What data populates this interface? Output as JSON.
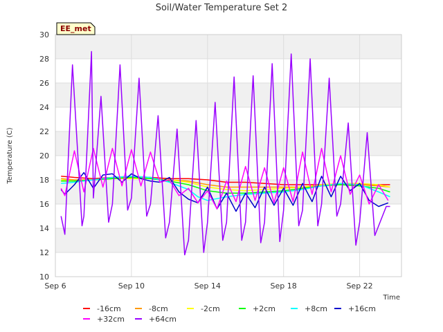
{
  "chart_data": {
    "type": "line",
    "title": "Soil/Water Temperature Set 2",
    "xlabel": "Time",
    "ylabel": "Temperature (C)",
    "badge": "EE_met",
    "ylim": [
      10,
      30
    ],
    "yticks": [
      10,
      12,
      14,
      16,
      18,
      20,
      22,
      24,
      26,
      28,
      30
    ],
    "xlim": [
      0,
      18.2
    ],
    "xticks": [
      {
        "value": 0,
        "label": "Sep 6"
      },
      {
        "value": 4,
        "label": "Sep 10"
      },
      {
        "value": 8,
        "label": "Sep 14"
      },
      {
        "value": 12,
        "label": "Sep 18"
      },
      {
        "value": 16,
        "label": "Sep 22"
      }
    ],
    "grid": true,
    "legend_position": "bottom",
    "series": [
      {
        "name": "-16cm",
        "color": "#ff0000",
        "x": [
          0.3,
          1,
          2,
          3,
          4,
          5,
          6,
          7,
          8,
          9,
          10,
          11,
          12,
          13,
          14,
          15,
          16,
          17,
          17.6
        ],
        "values": [
          18.3,
          18.2,
          18.1,
          18.2,
          18.3,
          18.2,
          18.1,
          18.1,
          18.0,
          17.8,
          17.8,
          17.7,
          17.6,
          17.6,
          17.6,
          17.6,
          17.6,
          17.6,
          17.6
        ]
      },
      {
        "name": "-8cm",
        "color": "#ff9900",
        "x": [
          0.3,
          1,
          2,
          3,
          4,
          5,
          6,
          7,
          8,
          9,
          10,
          11,
          12,
          13,
          14,
          15,
          16,
          17,
          17.6
        ],
        "values": [
          18.1,
          18.0,
          18.0,
          18.1,
          18.1,
          18.1,
          18.0,
          17.9,
          17.6,
          17.4,
          17.4,
          17.4,
          17.4,
          17.4,
          17.5,
          17.6,
          17.6,
          17.5,
          17.4
        ]
      },
      {
        "name": "-2cm",
        "color": "#ffff00",
        "x": [
          0.3,
          1,
          2,
          3,
          4,
          5,
          6,
          7,
          8,
          9,
          10,
          11,
          12,
          13,
          14,
          15,
          16,
          17,
          17.6
        ],
        "values": [
          18.0,
          17.9,
          18.0,
          18.1,
          18.1,
          18.1,
          18.0,
          17.8,
          17.4,
          17.2,
          17.1,
          17.2,
          17.3,
          17.4,
          17.6,
          17.7,
          17.7,
          17.6,
          17.4
        ]
      },
      {
        "name": "+2cm",
        "color": "#00ff00",
        "x": [
          0.3,
          1,
          2,
          3,
          4,
          5,
          6,
          7,
          8,
          9,
          10,
          11,
          12,
          13,
          14,
          15,
          16,
          17,
          17.6
        ],
        "values": [
          17.9,
          17.9,
          18.0,
          18.1,
          18.2,
          18.1,
          17.9,
          17.6,
          17.1,
          16.9,
          16.9,
          17.0,
          17.1,
          17.3,
          17.5,
          17.6,
          17.5,
          17.3,
          17.0
        ]
      },
      {
        "name": "+8cm",
        "color": "#00ffff",
        "x": [
          0.3,
          1,
          2,
          3,
          4,
          5,
          6,
          7,
          7.5,
          8,
          9,
          10,
          11,
          12,
          13,
          14,
          15,
          16,
          17,
          17.6
        ],
        "values": [
          17.7,
          17.8,
          18.0,
          18.2,
          18.3,
          18.2,
          17.8,
          17.2,
          16.6,
          16.3,
          16.6,
          16.8,
          16.9,
          17.0,
          17.2,
          17.5,
          17.7,
          17.6,
          17.0,
          16.6
        ]
      },
      {
        "name": "+16cm",
        "color": "#0000cc",
        "x": [
          0.3,
          0.5,
          1,
          1.5,
          2,
          2.5,
          3,
          3.5,
          4,
          4.5,
          5,
          5.5,
          6,
          6.5,
          7,
          7.5,
          8,
          8.5,
          9,
          9.5,
          10,
          10.5,
          11,
          11.5,
          12,
          12.5,
          13,
          13.5,
          14,
          14.5,
          15,
          15.5,
          16,
          16.5,
          17,
          17.5
        ],
        "values": [
          17.2,
          16.8,
          17.6,
          18.6,
          17.3,
          18.4,
          18.5,
          17.8,
          18.5,
          18.1,
          17.9,
          17.8,
          18.2,
          17.0,
          16.4,
          16.1,
          17.4,
          15.6,
          16.9,
          15.4,
          16.9,
          15.7,
          17.4,
          15.9,
          17.3,
          15.9,
          17.7,
          16.2,
          18.3,
          16.6,
          18.3,
          17.1,
          17.7,
          16.3,
          15.8,
          16.1
        ]
      },
      {
        "name": "+32cm",
        "color": "#ff00ff",
        "x": [
          0.3,
          0.5,
          1,
          1.5,
          2,
          2.5,
          3,
          3.5,
          4,
          4.5,
          5,
          5.5,
          6,
          6.5,
          7,
          7.5,
          8,
          8.5,
          9,
          9.5,
          10,
          10.5,
          11,
          11.5,
          12,
          12.5,
          13,
          13.5,
          14,
          14.5,
          15,
          15.5,
          16,
          16.5,
          17,
          17.5
        ],
        "values": [
          17.3,
          16.7,
          20.4,
          17.0,
          20.6,
          17.4,
          20.6,
          17.5,
          20.5,
          17.5,
          20.3,
          17.8,
          18.0,
          16.7,
          17.3,
          16.1,
          17.1,
          15.6,
          17.9,
          16.2,
          19.1,
          16.3,
          19.0,
          16.1,
          19.0,
          16.2,
          20.3,
          16.8,
          20.6,
          17.0,
          20.0,
          16.8,
          18.4,
          16.0,
          17.6,
          16.3
        ]
      },
      {
        "name": "+64cm",
        "color": "#9900ff",
        "x": [
          0.3,
          0.5,
          0.9,
          1.4,
          1.5,
          1.9,
          2.0,
          2.4,
          2.8,
          3.0,
          3.4,
          3.8,
          4.0,
          4.4,
          4.8,
          5.0,
          5.4,
          5.8,
          6.0,
          6.4,
          6.8,
          7.0,
          7.4,
          7.8,
          8.0,
          8.4,
          8.8,
          9.0,
          9.4,
          9.8,
          10.0,
          10.4,
          10.8,
          11.0,
          11.4,
          11.8,
          12.0,
          12.4,
          12.8,
          13.0,
          13.4,
          13.8,
          14.0,
          14.4,
          14.8,
          15.0,
          15.4,
          15.8,
          16.0,
          16.4,
          16.8,
          17.0,
          17.4,
          17.6
        ],
        "values": [
          15.0,
          13.5,
          27.5,
          14.2,
          15.0,
          28.6,
          16.5,
          24.9,
          14.5,
          16.0,
          27.5,
          15.5,
          16.5,
          26.4,
          15.0,
          16.0,
          23.3,
          13.2,
          14.5,
          22.2,
          11.8,
          13.0,
          22.9,
          12.0,
          14.5,
          24.4,
          13.0,
          14.5,
          26.5,
          13.0,
          14.5,
          26.6,
          12.8,
          14.5,
          27.6,
          12.9,
          15.5,
          28.4,
          14.2,
          15.5,
          28.0,
          14.2,
          16.0,
          26.4,
          15.0,
          16.0,
          22.7,
          12.6,
          14.5,
          21.9,
          13.4,
          14.2,
          15.8,
          15.8
        ]
      }
    ]
  }
}
